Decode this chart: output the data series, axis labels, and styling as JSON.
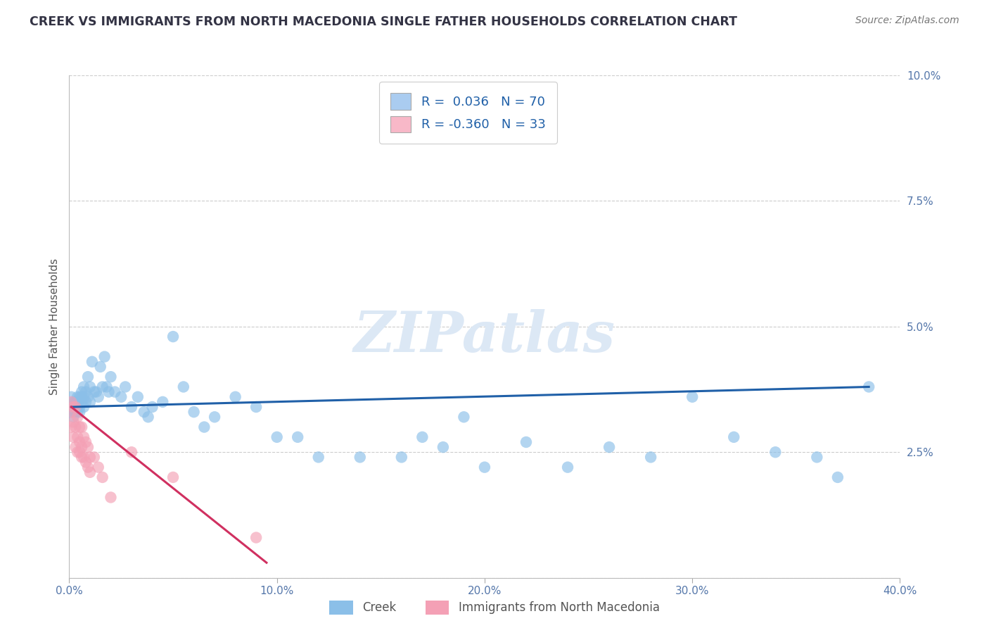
{
  "title": "CREEK VS IMMIGRANTS FROM NORTH MACEDONIA SINGLE FATHER HOUSEHOLDS CORRELATION CHART",
  "source_text": "Source: ZipAtlas.com",
  "ylabel": "Single Father Households",
  "xlabel_creek": "Creek",
  "xlabel_nmacedonia": "Immigrants from North Macedonia",
  "xlim": [
    0.0,
    0.4
  ],
  "ylim": [
    0.0,
    0.1
  ],
  "xticks": [
    0.0,
    0.1,
    0.2,
    0.3,
    0.4
  ],
  "xticklabels": [
    "0.0%",
    "10.0%",
    "20.0%",
    "30.0%",
    "40.0%"
  ],
  "yticks": [
    0.0,
    0.025,
    0.05,
    0.075,
    0.1
  ],
  "yticklabels": [
    "",
    "2.5%",
    "5.0%",
    "7.5%",
    "10.0%"
  ],
  "creek_color": "#8BBFE8",
  "nmacedonia_color": "#F4A0B5",
  "trendline_creek_color": "#2060A8",
  "trendline_nmacedonia_color": "#D03060",
  "legend_box_creek": "#AACCF0",
  "legend_box_nmacedonia": "#F8B8C8",
  "R_creek": 0.036,
  "N_creek": 70,
  "R_nmacedonia": -0.36,
  "N_nmacedonia": 33,
  "watermark_text": "ZIPatlas",
  "watermark_color": "#DCE8F5",
  "title_color": "#333344",
  "creek_x": [
    0.001,
    0.001,
    0.002,
    0.002,
    0.003,
    0.003,
    0.003,
    0.004,
    0.004,
    0.004,
    0.005,
    0.005,
    0.005,
    0.006,
    0.006,
    0.006,
    0.007,
    0.007,
    0.007,
    0.008,
    0.008,
    0.009,
    0.009,
    0.01,
    0.01,
    0.011,
    0.012,
    0.013,
    0.014,
    0.015,
    0.016,
    0.017,
    0.018,
    0.019,
    0.02,
    0.022,
    0.025,
    0.027,
    0.03,
    0.033,
    0.036,
    0.038,
    0.04,
    0.045,
    0.05,
    0.055,
    0.06,
    0.065,
    0.07,
    0.08,
    0.09,
    0.1,
    0.11,
    0.12,
    0.14,
    0.16,
    0.17,
    0.18,
    0.19,
    0.2,
    0.22,
    0.24,
    0.26,
    0.28,
    0.3,
    0.32,
    0.34,
    0.36,
    0.37,
    0.385
  ],
  "creek_y": [
    0.033,
    0.036,
    0.032,
    0.035,
    0.033,
    0.035,
    0.034,
    0.036,
    0.034,
    0.033,
    0.036,
    0.034,
    0.033,
    0.037,
    0.036,
    0.035,
    0.038,
    0.036,
    0.034,
    0.037,
    0.035,
    0.04,
    0.036,
    0.038,
    0.035,
    0.043,
    0.037,
    0.037,
    0.036,
    0.042,
    0.038,
    0.044,
    0.038,
    0.037,
    0.04,
    0.037,
    0.036,
    0.038,
    0.034,
    0.036,
    0.033,
    0.032,
    0.034,
    0.035,
    0.048,
    0.038,
    0.033,
    0.03,
    0.032,
    0.036,
    0.034,
    0.028,
    0.028,
    0.024,
    0.024,
    0.024,
    0.028,
    0.026,
    0.032,
    0.022,
    0.027,
    0.022,
    0.026,
    0.024,
    0.036,
    0.028,
    0.025,
    0.024,
    0.02,
    0.038
  ],
  "nmacedonia_x": [
    0.001,
    0.001,
    0.001,
    0.002,
    0.002,
    0.002,
    0.003,
    0.003,
    0.003,
    0.004,
    0.004,
    0.004,
    0.005,
    0.005,
    0.005,
    0.006,
    0.006,
    0.006,
    0.007,
    0.007,
    0.008,
    0.008,
    0.009,
    0.009,
    0.01,
    0.01,
    0.012,
    0.014,
    0.016,
    0.02,
    0.03,
    0.05,
    0.09
  ],
  "nmacedonia_y": [
    0.035,
    0.033,
    0.03,
    0.034,
    0.031,
    0.028,
    0.034,
    0.03,
    0.026,
    0.032,
    0.028,
    0.025,
    0.03,
    0.027,
    0.025,
    0.03,
    0.026,
    0.024,
    0.028,
    0.024,
    0.027,
    0.023,
    0.026,
    0.022,
    0.024,
    0.021,
    0.024,
    0.022,
    0.02,
    0.016,
    0.025,
    0.02,
    0.008
  ],
  "creek_trendline_x": [
    0.001,
    0.385
  ],
  "creek_trendline_y": [
    0.034,
    0.038
  ],
  "nmac_trendline_x": [
    0.001,
    0.095
  ],
  "nmac_trendline_y": [
    0.034,
    0.003
  ]
}
